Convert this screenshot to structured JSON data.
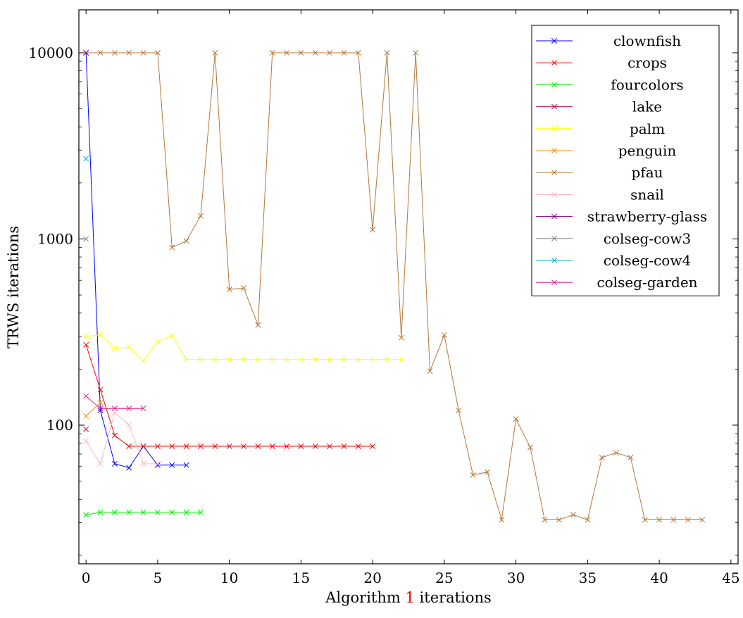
{
  "chart_data": {
    "type": "line",
    "title": "",
    "xlabel_prefix": "Algorithm ",
    "xlabel_ref": "1",
    "xlabel_suffix": " iterations",
    "ylabel": "TRWS iterations",
    "xlim": [
      -0.5,
      45.5
    ],
    "ylim": [
      18,
      17000
    ],
    "yscale": "log",
    "x_ticks": [
      0,
      5,
      10,
      15,
      20,
      25,
      30,
      35,
      40,
      45
    ],
    "y_ticks": [
      100,
      1000,
      10000
    ],
    "grid": false,
    "legend_position": "top-right",
    "ref_color": "#e00000",
    "series": [
      {
        "name": "clownfish",
        "color": "#0000ff",
        "x": [
          0,
          1,
          2,
          3,
          4,
          5,
          6,
          7
        ],
        "y": [
          10000,
          120,
          62,
          59,
          77,
          61,
          61,
          61
        ]
      },
      {
        "name": "crops",
        "color": "#ff0000",
        "x": [
          0,
          1,
          2,
          3,
          4,
          5,
          6,
          7,
          8,
          9,
          10,
          11,
          12,
          13,
          14,
          15,
          16,
          17,
          18,
          19,
          20
        ],
        "y": [
          270,
          155,
          88,
          77,
          77,
          77,
          77,
          77,
          77,
          77,
          77,
          77,
          77,
          77,
          77,
          77,
          77,
          77,
          77,
          77,
          77
        ]
      },
      {
        "name": "fourcolors",
        "color": "#00ee00",
        "x": [
          0,
          1,
          2,
          3,
          4,
          5,
          6,
          7,
          8
        ],
        "y": [
          33,
          34,
          34,
          34,
          34,
          34,
          34,
          34,
          34
        ]
      },
      {
        "name": "lake",
        "color": "#c8003c",
        "x": [
          0
        ],
        "y": [
          95
        ]
      },
      {
        "name": "palm",
        "color": "#ffff00",
        "x": [
          0,
          1,
          2,
          3,
          4,
          5,
          6,
          7,
          8,
          9,
          10,
          11,
          12,
          13,
          14,
          15,
          16,
          17,
          18,
          19,
          20,
          21,
          22
        ],
        "y": [
          300,
          305,
          258,
          262,
          222,
          280,
          302,
          225,
          225,
          225,
          225,
          225,
          225,
          225,
          225,
          225,
          225,
          225,
          225,
          225,
          225,
          225,
          225
        ]
      },
      {
        "name": "penguin",
        "color": "#ff8c00",
        "x": [
          0,
          1
        ],
        "y": [
          112,
          132
        ]
      },
      {
        "name": "pfau",
        "color": "#b5773a",
        "x": [
          0,
          1,
          2,
          3,
          4,
          5,
          6,
          7,
          8,
          9,
          10,
          11,
          12,
          13,
          14,
          15,
          16,
          17,
          18,
          19,
          20,
          21,
          22,
          23,
          24,
          25,
          26,
          27,
          28,
          29,
          30,
          31,
          32,
          33,
          34,
          35,
          36,
          37,
          38,
          39,
          40,
          41,
          42,
          43
        ],
        "y": [
          10000,
          10000,
          10000,
          10000,
          10000,
          10000,
          900,
          975,
          1330,
          10000,
          535,
          545,
          345,
          10000,
          10000,
          10000,
          10000,
          10000,
          10000,
          10000,
          1120,
          10000,
          295,
          10000,
          195,
          305,
          120,
          54,
          56,
          31,
          108,
          76,
          31,
          31,
          33,
          31,
          67,
          71,
          67,
          31,
          31,
          31,
          31,
          31
        ]
      },
      {
        "name": "snail",
        "color": "#ffb6c1",
        "x": [
          0,
          1,
          2,
          3,
          4,
          5
        ],
        "y": [
          82,
          62,
          117,
          100,
          62,
          62
        ]
      },
      {
        "name": "strawberry-glass",
        "color": "#800080",
        "x": [
          0
        ],
        "y": [
          10000
        ]
      },
      {
        "name": "colseg-cow3",
        "color": "#808080",
        "x": [
          0
        ],
        "y": [
          1000
        ]
      },
      {
        "name": "colseg-cow4",
        "color": "#00b4c8",
        "x": [
          0
        ],
        "y": [
          2700
        ]
      },
      {
        "name": "colseg-garden",
        "color": "#e0208c",
        "x": [
          0,
          1,
          2,
          3,
          4
        ],
        "y": [
          143,
          123,
          123,
          123,
          123
        ]
      }
    ]
  }
}
